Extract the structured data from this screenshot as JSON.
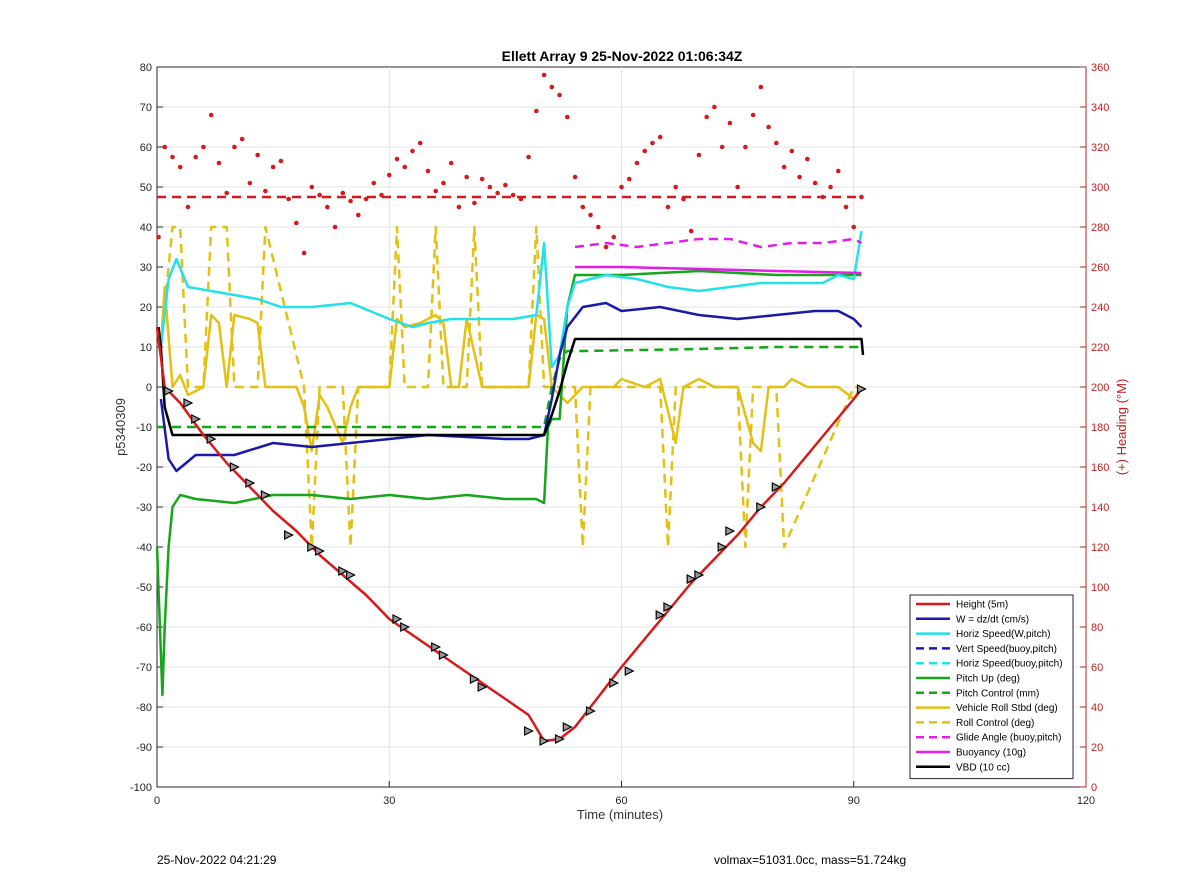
{
  "figure": {
    "footer_left": "25-Nov-2022 04:21:29",
    "footer_right": "volmax=51031.0cc, mass=51.724kg"
  },
  "chart_data": {
    "type": "line",
    "title": "Ellett Array 9 25-Nov-2022 01:06:34Z",
    "xlabel": "Time (minutes)",
    "ylabel": "p5340309",
    "y2label": "(+) Heading (°M)",
    "xlim": [
      0,
      120
    ],
    "ylim": [
      -100,
      80
    ],
    "y2lim": [
      0,
      360
    ],
    "xticks": [
      "0",
      "30",
      "60",
      "90",
      "120"
    ],
    "yticks": [
      "-100",
      "-90",
      "-80",
      "-70",
      "-60",
      "-50",
      "-40",
      "-30",
      "-20",
      "-10",
      "0",
      "10",
      "20",
      "30",
      "40",
      "50",
      "60",
      "70",
      "80"
    ],
    "y2ticks": [
      "0",
      "20",
      "40",
      "60",
      "80",
      "100",
      "120",
      "140",
      "160",
      "180",
      "200",
      "220",
      "240",
      "260",
      "280",
      "300",
      "320",
      "340",
      "360"
    ],
    "grid": true,
    "legend_position": "bottom-right",
    "series": [
      {
        "name": "Height (5m)",
        "color": "#d7191c",
        "style": "solid",
        "x": [
          0,
          1,
          3,
          6,
          9,
          12,
          15,
          18,
          21,
          24,
          27,
          30,
          33,
          36,
          39,
          42,
          45,
          48,
          50,
          52,
          54,
          56,
          58,
          60,
          63,
          66,
          69,
          72,
          75,
          78,
          81,
          84,
          87,
          90,
          91
        ],
        "y": [
          15,
          0,
          -4,
          -12,
          -19,
          -25,
          -31,
          -36,
          -42,
          -47,
          -52,
          -58,
          -62,
          -66,
          -70,
          -74,
          -78,
          -82,
          -88.5,
          -88,
          -85,
          -80,
          -75,
          -70,
          -63,
          -56,
          -49,
          -43,
          -37,
          -30,
          -24,
          -17,
          -10,
          -3,
          -0.5
        ]
      },
      {
        "name": "W = dz/dt (cm/s)",
        "color": "#1a1aaa",
        "style": "solid",
        "x": [
          0.5,
          1.5,
          2.5,
          5,
          10,
          15,
          20,
          25,
          30,
          35,
          40,
          45,
          48,
          50,
          51,
          52,
          53,
          55,
          58,
          60,
          65,
          70,
          75,
          80,
          85,
          88,
          90,
          91
        ],
        "y": [
          -3,
          -18,
          -21,
          -17,
          -17,
          -14,
          -15,
          -14,
          -13,
          -12,
          -12.5,
          -13,
          -13,
          -12,
          -3,
          8,
          15,
          20,
          21,
          19,
          20,
          18,
          17,
          18,
          19,
          19,
          17,
          15
        ]
      },
      {
        "name": "Horiz Speed(W,pitch)",
        "color": "#22e1e9",
        "style": "solid",
        "x": [
          0.5,
          1.5,
          2.5,
          4,
          7,
          10,
          13,
          16,
          20,
          25,
          30,
          33,
          35,
          38,
          42,
          46,
          49,
          50,
          51,
          52,
          53,
          54,
          58,
          62,
          66,
          70,
          74,
          78,
          82,
          86,
          88,
          90,
          91
        ],
        "y": [
          10,
          27,
          32,
          25,
          24,
          23,
          22,
          20,
          20,
          21,
          17,
          15,
          16,
          17,
          17,
          17,
          18,
          36,
          5,
          8,
          20,
          26,
          28,
          27,
          25,
          24,
          25,
          26,
          26,
          26,
          28,
          27,
          39
        ]
      },
      {
        "name": "Vert Speed(buoy,pitch)",
        "color": "#1a1aaa",
        "style": "dashed",
        "x": [],
        "y": []
      },
      {
        "name": "Horiz Speed(buoy,pitch)",
        "color": "#22e1e9",
        "style": "dashed",
        "x": [],
        "y": []
      },
      {
        "name": "Pitch Up (deg)",
        "color": "#16a51b",
        "style": "solid",
        "x": [
          0,
          0.7,
          1,
          1.5,
          2,
          3,
          5,
          10,
          15,
          20,
          25,
          30,
          35,
          40,
          45,
          49,
          50,
          50.5,
          51,
          52,
          53,
          54,
          60,
          70,
          80,
          90,
          91
        ],
        "y": [
          -40,
          -77,
          -60,
          -40,
          -30,
          -27,
          -28,
          -29,
          -27,
          -27,
          -28,
          -27,
          -28,
          -27,
          -28,
          -28,
          -29,
          -10,
          -8,
          -8,
          20,
          28,
          28,
          29,
          28,
          28,
          28
        ]
      },
      {
        "name": "Pitch Control (mm)",
        "color": "#16a51b",
        "style": "dashed",
        "x": [
          0,
          2,
          20,
          40,
          50,
          51,
          52,
          53,
          55,
          70,
          80,
          91
        ],
        "y": [
          -10,
          -10,
          -10,
          -10,
          -10,
          0,
          7,
          9,
          9,
          9.5,
          10,
          10
        ]
      },
      {
        "name": "Vehicle Roll Stbd (deg)",
        "color": "#e3c014",
        "style": "solid",
        "x": [
          0.5,
          1,
          2,
          3,
          4,
          6,
          7,
          8,
          9,
          10,
          12,
          13,
          14,
          18,
          19,
          20,
          21,
          22,
          24,
          25,
          26,
          30,
          31,
          32,
          34,
          36,
          37,
          38,
          39,
          40,
          42,
          45,
          48,
          49,
          50,
          51,
          52,
          53,
          55,
          57,
          59,
          60,
          63,
          65,
          67,
          68,
          70,
          72,
          75,
          77,
          78,
          79,
          81,
          82,
          84,
          86,
          88,
          90,
          91
        ],
        "y": [
          10,
          25,
          0,
          3,
          -2,
          0,
          18,
          16,
          0,
          18,
          17,
          16,
          0,
          0,
          -5,
          -16,
          -2,
          -5,
          -14,
          -5,
          0,
          0,
          17,
          15,
          16,
          18,
          16,
          0,
          0,
          17,
          0,
          0,
          0,
          18,
          17,
          0,
          -2,
          -4,
          0,
          0,
          0,
          2,
          0,
          2,
          -14,
          0,
          2,
          0,
          0,
          -14,
          -16,
          0,
          0,
          2,
          0,
          0,
          0,
          -3,
          0
        ]
      },
      {
        "name": "Roll Control (deg)",
        "color": "#e3c014",
        "style": "dashed",
        "x": [
          1,
          2,
          3,
          4,
          6,
          7,
          9,
          10,
          13,
          14,
          19,
          20,
          21,
          24,
          25,
          26,
          30,
          31,
          32,
          35,
          36,
          37,
          40,
          41,
          42,
          48,
          49,
          50,
          51,
          54,
          55,
          56,
          57,
          65,
          66,
          67,
          68,
          75,
          76,
          77,
          80,
          81,
          90,
          91
        ],
        "y": [
          20,
          40,
          40,
          0,
          0,
          40,
          40,
          0,
          0,
          40,
          0,
          -40,
          0,
          0,
          -40,
          0,
          0,
          40,
          0,
          0,
          40,
          0,
          0,
          40,
          0,
          0,
          40,
          0,
          0,
          0,
          -40,
          0,
          0,
          0,
          -40,
          0,
          0,
          0,
          -40,
          0,
          0,
          -40,
          0,
          0
        ]
      },
      {
        "name": "Glide Angle (buoy,pitch)",
        "color": "#e21fe6",
        "style": "dashed",
        "x": [
          54,
          58,
          62,
          66,
          70,
          74,
          78,
          82,
          86,
          90,
          91
        ],
        "y": [
          35,
          36,
          35,
          36,
          37,
          37,
          35,
          36,
          36,
          37,
          36
        ]
      },
      {
        "name": "Buoyancy (10g)",
        "color": "#e21fe6",
        "style": "solid",
        "x": [
          54,
          60,
          70,
          80,
          91
        ],
        "y": [
          30,
          30,
          29.5,
          29,
          28.5
        ]
      },
      {
        "name": "VBD (10 cc)",
        "color": "#000000",
        "style": "solid",
        "x": [
          0.2,
          0.5,
          1,
          2,
          10,
          20,
          30,
          40,
          50,
          51,
          52,
          53,
          54,
          60,
          70,
          80,
          90,
          91,
          91.2
        ],
        "y": [
          15,
          10,
          -5,
          -12,
          -12,
          -12,
          -12,
          -12,
          -12,
          -7,
          -1,
          6,
          12,
          12,
          12,
          12,
          12,
          12,
          8
        ]
      }
    ],
    "markers": {
      "name": "depth markers",
      "x": [
        1.5,
        4,
        5,
        7,
        10,
        12,
        14,
        17,
        20,
        21,
        24,
        25,
        31,
        32,
        36,
        37,
        41,
        42,
        48,
        50,
        52,
        53,
        56,
        59,
        61,
        65,
        66,
        69,
        70,
        73,
        74,
        78,
        80,
        91
      ],
      "y": [
        -1,
        -4,
        -8,
        -13,
        -20,
        -24,
        -27,
        -37,
        -40,
        -41,
        -46,
        -47,
        -58,
        -60,
        -65,
        -67,
        -73,
        -75,
        -86,
        -88.5,
        -88,
        -85,
        -81,
        -74,
        -71,
        -57,
        -55,
        -48,
        -47,
        -40,
        -36,
        -30,
        -25,
        -0.5
      ]
    },
    "heading_series": {
      "name": "Heading",
      "color": "#d7191c",
      "axis": "right",
      "x": [
        0.2,
        1,
        2,
        3,
        4,
        5,
        6,
        7,
        8,
        9,
        10,
        11,
        12,
        13,
        14,
        15,
        16,
        17,
        18,
        19,
        20,
        21,
        22,
        23,
        24,
        25,
        26,
        27,
        28,
        29,
        30,
        31,
        32,
        33,
        34,
        35,
        36,
        37,
        38,
        39,
        40,
        41,
        42,
        43,
        44,
        45,
        46,
        47,
        48,
        49,
        50,
        51,
        52,
        53,
        54,
        55,
        56,
        57,
        58,
        59,
        60,
        61,
        62,
        63,
        64,
        65,
        66,
        67,
        68,
        69,
        70,
        71,
        72,
        73,
        74,
        75,
        76,
        77,
        78,
        79,
        80,
        81,
        82,
        83,
        84,
        85,
        86,
        87,
        88,
        89,
        90,
        91
      ],
      "y": [
        275,
        320,
        315,
        310,
        290,
        315,
        320,
        336,
        312,
        297,
        320,
        324,
        302,
        316,
        298,
        310,
        313,
        294,
        282,
        267,
        300,
        296,
        290,
        280,
        297,
        293,
        286,
        294,
        302,
        296,
        306,
        314,
        310,
        318,
        322,
        308,
        298,
        302,
        312,
        290,
        305,
        292,
        304,
        300,
        297,
        301,
        296,
        294,
        315,
        338,
        356,
        350,
        346,
        335,
        305,
        290,
        286,
        280,
        270,
        275,
        300,
        304,
        312,
        318,
        322,
        325,
        290,
        300,
        294,
        278,
        316,
        335,
        340,
        320,
        332,
        300,
        320,
        336,
        350,
        330,
        322,
        310,
        318,
        305,
        314,
        302,
        295,
        300,
        308,
        290,
        280,
        295
      ]
    },
    "heading_mean": {
      "value": 295,
      "axis": "right",
      "color": "#d7191c",
      "style": "dashed"
    }
  }
}
